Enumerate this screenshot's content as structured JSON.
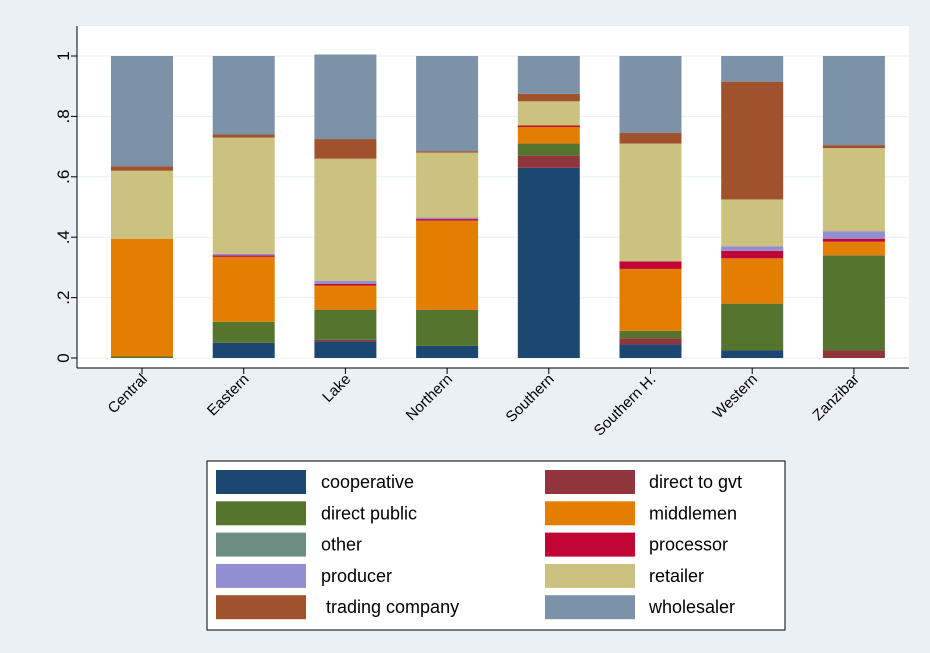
{
  "chart_data": {
    "type": "bar",
    "stacked": true,
    "categories": [
      "Central",
      "Eastern",
      "Lake",
      "Northern",
      "Southern",
      "Southern H.",
      "Western",
      "Zanzibar"
    ],
    "ylim": [
      0,
      1
    ],
    "yticks": [
      "0",
      ".2",
      ".4",
      ".6",
      ".8",
      "1"
    ],
    "ytick_values": [
      0,
      0.2,
      0.4,
      0.6,
      0.8,
      1
    ],
    "grid": true,
    "legend_position": "bottom",
    "series": [
      {
        "name": "cooperative",
        "color": "#1c4771",
        "values": [
          0.0,
          0.05,
          0.055,
          0.04,
          0.63,
          0.045,
          0.025,
          0.0
        ]
      },
      {
        "name": "direct to gvt",
        "color": "#90353b",
        "values": [
          0.0,
          0.0,
          0.005,
          0.0,
          0.04,
          0.02,
          0.0,
          0.025
        ]
      },
      {
        "name": "direct public",
        "color": "#55752f",
        "values": [
          0.005,
          0.07,
          0.1,
          0.12,
          0.04,
          0.025,
          0.155,
          0.315
        ]
      },
      {
        "name": "middlemen",
        "color": "#e37e00",
        "values": [
          0.39,
          0.215,
          0.08,
          0.295,
          0.055,
          0.205,
          0.15,
          0.045
        ]
      },
      {
        "name": "other",
        "color": "#6e8e84",
        "values": [
          0.0,
          0.0,
          0.0,
          0.0,
          0.0,
          0.0,
          0.0,
          0.0
        ]
      },
      {
        "name": "processor",
        "color": "#c10534",
        "values": [
          0.0,
          0.005,
          0.005,
          0.005,
          0.005,
          0.025,
          0.025,
          0.01
        ]
      },
      {
        "name": "producer",
        "color": "#938dd2",
        "values": [
          0.0,
          0.005,
          0.01,
          0.005,
          0.0,
          0.0,
          0.015,
          0.025
        ]
      },
      {
        "name": "retailer",
        "color": "#cac27e",
        "values": [
          0.225,
          0.385,
          0.405,
          0.215,
          0.08,
          0.39,
          0.155,
          0.275
        ]
      },
      {
        "name": " trading company",
        "color": "#a0522d",
        "values": [
          0.015,
          0.01,
          0.065,
          0.005,
          0.025,
          0.035,
          0.39,
          0.01
        ]
      },
      {
        "name": "wholesaler",
        "color": "#7b92a8",
        "values": [
          0.365,
          0.26,
          0.28,
          0.315,
          0.125,
          0.255,
          0.085,
          0.295
        ]
      }
    ],
    "legend_order": [
      [
        " cooperative",
        "direct to gvt"
      ],
      [
        "direct public",
        "middlemen"
      ],
      [
        "other",
        "processor"
      ],
      [
        "producer",
        "retailer"
      ],
      [
        " trading company",
        "wholesaler"
      ]
    ],
    "title": "",
    "xlabel": "",
    "ylabel": ""
  }
}
